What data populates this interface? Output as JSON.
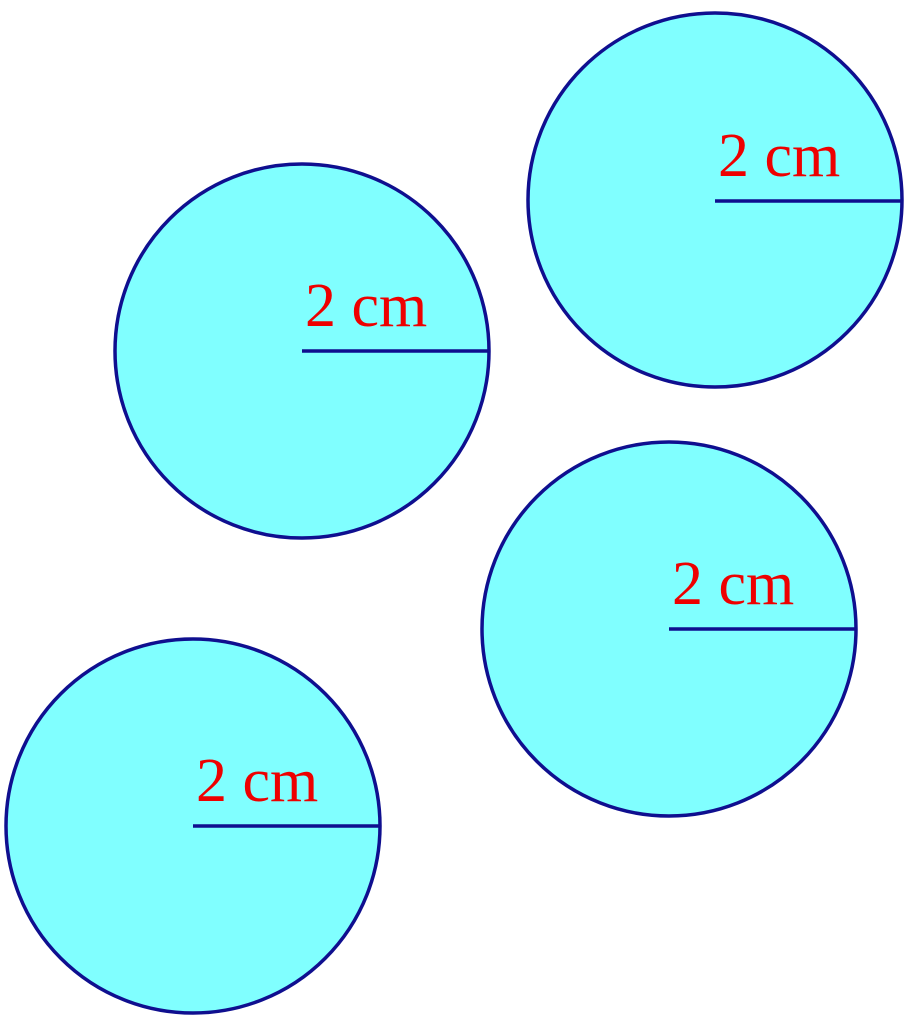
{
  "colors": {
    "circle_fill": "#80ffff",
    "circle_stroke": "#0f0f8f",
    "label": "#ee0000",
    "background": "#ffffff"
  },
  "circles": [
    {
      "radius_label": "2 cm"
    },
    {
      "radius_label": "2 cm"
    },
    {
      "radius_label": "2 cm"
    },
    {
      "radius_label": "2 cm"
    }
  ]
}
